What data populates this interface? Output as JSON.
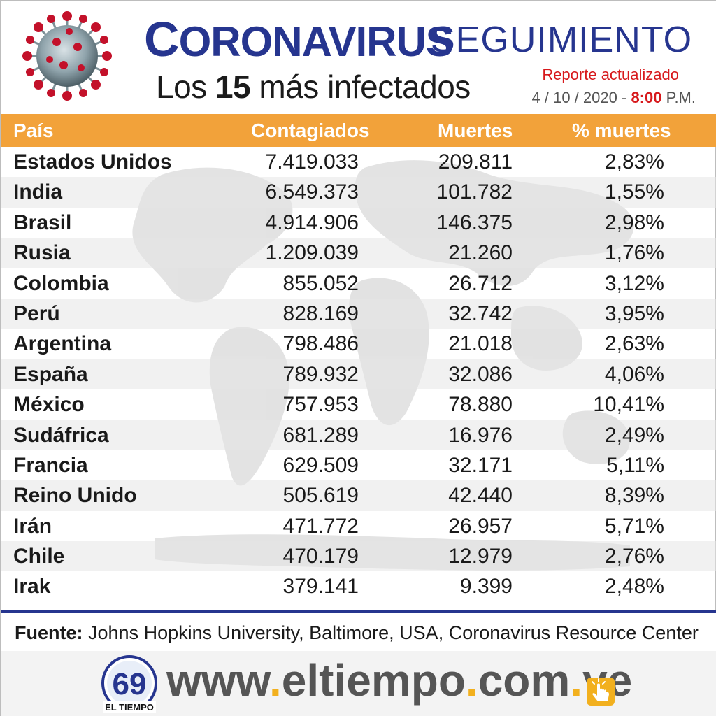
{
  "header": {
    "title_main_initial": "C",
    "title_main_rest": "ORONAVIRUS",
    "title_secondary": "SEGUIMIENTO",
    "subtitle_prefix": "Los",
    "subtitle_number": "15",
    "subtitle_suffix": "más infectados",
    "report_label": "Reporte actualizado",
    "report_date": "4 / 10 / 2020 -",
    "report_time": "8:00",
    "report_ampm": "P.M."
  },
  "table": {
    "columns": [
      "País",
      "Contagiados",
      "Muertes",
      "% muertes"
    ],
    "rows": [
      [
        "Estados Unidos",
        "7.419.033",
        "209.811",
        "2,83%"
      ],
      [
        "India",
        "6.549.373",
        "101.782",
        "1,55%"
      ],
      [
        "Brasil",
        "4.914.906",
        "146.375",
        "2,98%"
      ],
      [
        "Rusia",
        "1.209.039",
        "21.260",
        "1,76%"
      ],
      [
        "Colombia",
        "855.052",
        "26.712",
        "3,12%"
      ],
      [
        "Perú",
        "828.169",
        "32.742",
        "3,95%"
      ],
      [
        "Argentina",
        "798.486",
        "21.018",
        "2,63%"
      ],
      [
        "España",
        "789.932",
        "32.086",
        "4,06%"
      ],
      [
        "México",
        "757.953",
        "78.880",
        "10,41%"
      ],
      [
        "Sudáfrica",
        "681.289",
        "16.976",
        "2,49%"
      ],
      [
        "Francia",
        "629.509",
        "32.171",
        "5,11%"
      ],
      [
        "Reino Unido",
        "505.619",
        "42.440",
        "8,39%"
      ],
      [
        "Irán",
        "471.772",
        "26.957",
        "5,71%"
      ],
      [
        "Chile",
        "470.179",
        "12.979",
        "2,76%"
      ],
      [
        "Irak",
        "379.141",
        "9.399",
        "2,48%"
      ]
    ]
  },
  "footer": {
    "source_label": "Fuente:",
    "source_text": "Johns Hopkins University, Baltimore, USA, Coronavirus Resource Center",
    "logo_number": "69",
    "logo_name": "EL TIEMPO",
    "url_www": "www",
    "url_dot": ".",
    "url_domain": "eltiempo",
    "url_com": "com",
    "url_ve": "ve"
  },
  "colors": {
    "brand_blue": "#26358f",
    "header_orange": "#f2a23a",
    "alert_red": "#d7191c",
    "url_gray": "#555555",
    "url_dot_yellow": "#f2b01e"
  },
  "icons": [
    "coronavirus-icon",
    "world-map-icon",
    "el-tiempo-logo",
    "hand-pointer-icon"
  ]
}
